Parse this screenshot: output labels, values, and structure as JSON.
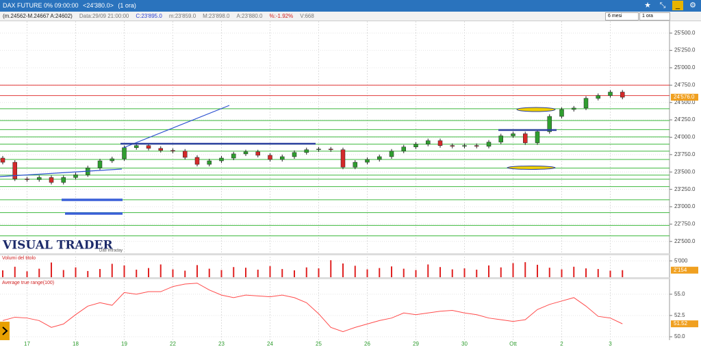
{
  "header": {
    "title": "DAX FUTURE 0% 09:00:00",
    "price": "<24'380.0>",
    "interval": "(1 ora)",
    "info": [
      {
        "text": "(m.24562-M.24667 A:24602)",
        "color": "#222222"
      },
      {
        "text": "Data:29/09 21:00:00",
        "color": "#777777"
      },
      {
        "text": "C:23'895.0",
        "color": "#2a3fd0"
      },
      {
        "text": "m:23'859.0",
        "color": "#777777"
      },
      {
        "text": "M:23'898.0",
        "color": "#777777"
      },
      {
        "text": "A:23'880.0",
        "color": "#777777"
      },
      {
        "text": "%:-1.92%",
        "color": "#d02020"
      },
      {
        "text": "V:668",
        "color": "#777777"
      }
    ],
    "period": "6 mesi",
    "timeframe": "1 ora"
  },
  "watermark": "VISUAL TRADER",
  "source": "Dati Intraday",
  "chart_data": [
    {
      "type": "candlestick",
      "categories": [
        null,
        null,
        "17",
        null,
        null,
        null,
        "18",
        null,
        null,
        null,
        "19",
        null,
        null,
        null,
        "22",
        null,
        null,
        null,
        "23",
        null,
        null,
        null,
        "24",
        null,
        null,
        null,
        "25",
        null,
        null,
        null,
        "26",
        null,
        null,
        null,
        "29",
        null,
        null,
        null,
        "30",
        null,
        null,
        null,
        "Ott",
        null,
        null,
        null,
        "2",
        null,
        null,
        null,
        "3",
        null
      ],
      "open": [
        23700,
        23640,
        23400,
        23390,
        23420,
        23350,
        23420,
        23460,
        23560,
        23660,
        23690,
        23850,
        23880,
        23840,
        23810,
        23800,
        23710,
        23610,
        23660,
        23700,
        23760,
        23790,
        23740,
        23680,
        23720,
        23780,
        23820,
        23830,
        23820,
        23570,
        23640,
        23680,
        23720,
        23800,
        23860,
        23900,
        23950,
        23880,
        23870,
        23880,
        23870,
        23930,
        24020,
        24050,
        23920,
        24080,
        24300,
        24400,
        24420,
        24560,
        24600,
        24650
      ],
      "high": [
        23730,
        23670,
        23430,
        23450,
        23450,
        23450,
        23490,
        23590,
        23690,
        23720,
        23880,
        23910,
        23910,
        23870,
        23840,
        23830,
        23740,
        23690,
        23730,
        23790,
        23820,
        23820,
        23770,
        23750,
        23810,
        23850,
        23860,
        23860,
        23850,
        23670,
        23710,
        23750,
        23830,
        23890,
        23930,
        23980,
        23980,
        23910,
        23910,
        23910,
        23960,
        24050,
        24080,
        24080,
        24110,
        24330,
        24430,
        24450,
        24590,
        24630,
        24680,
        24680
      ],
      "low": [
        23610,
        23370,
        23360,
        23360,
        23320,
        23320,
        23390,
        23430,
        23530,
        23630,
        23660,
        23820,
        23810,
        23780,
        23770,
        23680,
        23580,
        23580,
        23630,
        23670,
        23730,
        23710,
        23650,
        23650,
        23690,
        23750,
        23790,
        23790,
        23540,
        23540,
        23610,
        23650,
        23690,
        23770,
        23830,
        23870,
        23850,
        23840,
        23840,
        23840,
        23840,
        23900,
        23990,
        23890,
        23890,
        24050,
        24270,
        24370,
        24390,
        24530,
        24570,
        24546
      ],
      "close": [
        23640,
        23400,
        23390,
        23420,
        23350,
        23420,
        23460,
        23560,
        23660,
        23690,
        23850,
        23880,
        23840,
        23810,
        23800,
        23710,
        23610,
        23660,
        23700,
        23760,
        23790,
        23740,
        23680,
        23720,
        23780,
        23820,
        23830,
        23820,
        23570,
        23640,
        23680,
        23720,
        23800,
        23860,
        23900,
        23950,
        23880,
        23870,
        23880,
        23870,
        23930,
        24020,
        24050,
        23920,
        24080,
        24300,
        24400,
        24420,
        24560,
        24600,
        24650,
        24576
      ],
      "up_color": "#2f9e2f",
      "down_color": "#d42a2a",
      "ylim": [
        22350,
        25670
      ],
      "yticks": [
        {
          "value": 22500,
          "label": "22'500.0"
        },
        {
          "value": 22750,
          "label": "22'750.0"
        },
        {
          "value": 23000,
          "label": "23'000.0"
        },
        {
          "value": 23250,
          "label": "23'250.0"
        },
        {
          "value": 23500,
          "label": "23'500.0"
        },
        {
          "value": 23750,
          "label": "23'750.0"
        },
        {
          "value": 24000,
          "label": "24'000.0"
        },
        {
          "value": 24250,
          "label": "24'250.0"
        },
        {
          "value": 24500,
          "label": "24'500.0"
        },
        {
          "value": 24750,
          "label": "24'750.0"
        },
        {
          "value": 25000,
          "label": "25'000.0"
        },
        {
          "value": 25250,
          "label": "25'250.0"
        },
        {
          "value": 25500,
          "label": "25'500.0"
        }
      ],
      "hlines": [
        {
          "value": 24750,
          "color": "#e03a3a"
        },
        {
          "value": 24600,
          "color": "#e03a3a"
        },
        {
          "value": 24410,
          "color": "#3cb83c"
        },
        {
          "value": 24240,
          "color": "#3cb83c"
        },
        {
          "value": 24110,
          "color": "#3cb83c"
        },
        {
          "value": 24005,
          "color": "#3cb83c"
        },
        {
          "value": 23900,
          "color": "#3cb83c"
        },
        {
          "value": 23800,
          "color": "#3cb83c"
        },
        {
          "value": 23680,
          "color": "#3cb83c"
        },
        {
          "value": 23555,
          "color": "#3cb83c"
        },
        {
          "value": 23455,
          "color": "#3cb83c"
        },
        {
          "value": 23395,
          "color": "#3cb83c"
        },
        {
          "value": 23290,
          "color": "#3cb83c"
        },
        {
          "value": 23100,
          "color": "#3cb83c"
        },
        {
          "value": 22915,
          "color": "#3cb83c"
        },
        {
          "value": 22730,
          "color": "#3cb83c"
        },
        {
          "value": 22580,
          "color": "#3cb83c"
        }
      ],
      "last_value_label": "24'576.0"
    },
    {
      "type": "bar",
      "title": "Volumi del titolo",
      "values": [
        2100,
        3200,
        1800,
        2600,
        4500,
        2200,
        3000,
        1900,
        2500,
        4100,
        3600,
        2300,
        2800,
        3900,
        2400,
        2000,
        3700,
        2600,
        2200,
        3100,
        2900,
        2300,
        3400,
        2500,
        2100,
        3000,
        2700,
        5200,
        4200,
        3500,
        2400,
        2800,
        3300,
        2600,
        2200,
        3900,
        3100,
        2400,
        2700,
        2300,
        3600,
        3000,
        4300,
        4600,
        3800,
        2900,
        2400,
        3200,
        2700,
        2500,
        2000,
        2154
      ],
      "color": "#e02020",
      "ylim": [
        0,
        6500
      ],
      "yticks": [
        {
          "value": 5000,
          "label": "5'000"
        }
      ],
      "last_value_label": "2'154"
    },
    {
      "type": "line",
      "title": "Average true range(100)",
      "values": [
        51.9,
        52.3,
        52.2,
        51.9,
        51.1,
        51.5,
        52.6,
        53.6,
        54.0,
        53.7,
        55.2,
        55.0,
        55.3,
        55.3,
        55.9,
        56.2,
        56.3,
        55.5,
        54.9,
        54.6,
        54.9,
        54.8,
        54.7,
        54.9,
        54.6,
        54.0,
        52.7,
        51.1,
        50.6,
        51.1,
        51.5,
        51.9,
        52.2,
        52.8,
        52.6,
        52.8,
        53.0,
        53.1,
        52.8,
        52.6,
        52.2,
        52.0,
        51.8,
        52.0,
        53.2,
        53.8,
        54.2,
        54.6,
        53.6,
        52.4,
        52.2,
        51.52
      ],
      "color": "#ff4a4a",
      "ylim": [
        49.6,
        56.6
      ],
      "yticks": [
        {
          "value": 55,
          "label": "55.0"
        },
        {
          "value": 52.5,
          "label": "52.5"
        },
        {
          "value": 50,
          "label": "50.0"
        }
      ],
      "last_value_label": "51.52"
    }
  ]
}
